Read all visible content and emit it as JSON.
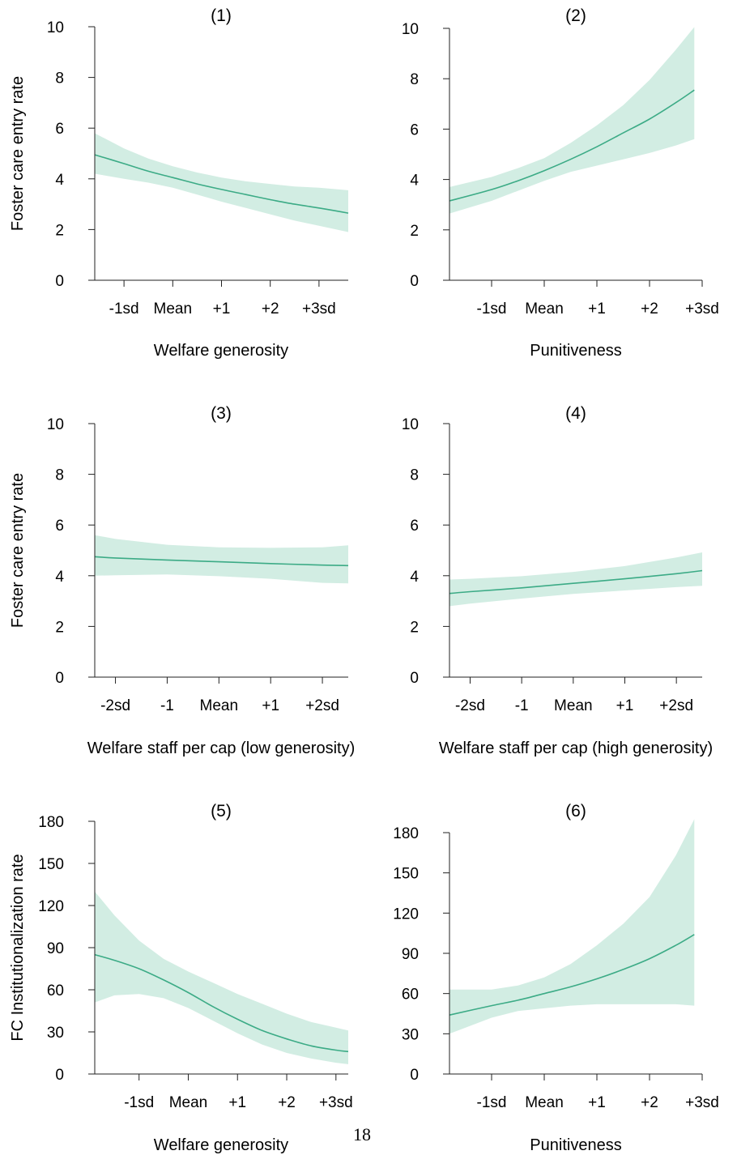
{
  "page_number": "18",
  "chart_data": [
    {
      "type": "line",
      "title": "(1)",
      "ylabel": "Foster care entry rate",
      "xlabel": "Welfare generosity",
      "ylim": [
        0,
        10
      ],
      "yticks": [
        0,
        2,
        4,
        6,
        8,
        10
      ],
      "xlim": [
        -1.6,
        3.6
      ],
      "xticks": [
        -1,
        0,
        1,
        2,
        3
      ],
      "xtick_labels": [
        "-1sd",
        "Mean",
        "+1",
        "+2",
        "+3sd"
      ],
      "x": [
        -1.6,
        -1.0,
        -0.5,
        0.0,
        0.5,
        1.0,
        1.5,
        2.0,
        2.5,
        3.0,
        3.6
      ],
      "y": [
        4.95,
        4.6,
        4.3,
        4.05,
        3.8,
        3.58,
        3.38,
        3.18,
        3.0,
        2.85,
        2.65
      ],
      "lower": [
        4.2,
        4.0,
        3.85,
        3.65,
        3.38,
        3.1,
        2.85,
        2.6,
        2.35,
        2.15,
        1.9
      ],
      "upper": [
        5.8,
        5.2,
        4.8,
        4.5,
        4.25,
        4.05,
        3.9,
        3.8,
        3.7,
        3.65,
        3.55
      ],
      "grid": false,
      "legend": "none"
    },
    {
      "type": "line",
      "title": "(2)",
      "ylabel": "",
      "xlabel": "Punitiveness",
      "ylim": [
        0,
        10
      ],
      "yticks": [
        0,
        2,
        4,
        6,
        8,
        10
      ],
      "xlim": [
        -1.8,
        3.0
      ],
      "xticks": [
        -1,
        0,
        1,
        2,
        3
      ],
      "xtick_labels": [
        "-1sd",
        "Mean",
        "+1",
        "+2",
        "+3sd"
      ],
      "x": [
        -1.8,
        -1.0,
        -0.5,
        0.0,
        0.5,
        1.0,
        1.5,
        2.0,
        2.5,
        2.85
      ],
      "y": [
        3.15,
        3.6,
        3.95,
        4.35,
        4.8,
        5.3,
        5.85,
        6.4,
        7.05,
        7.55
      ],
      "lower": [
        2.65,
        3.15,
        3.55,
        3.95,
        4.3,
        4.55,
        4.8,
        5.05,
        5.35,
        5.6
      ],
      "upper": [
        3.7,
        4.1,
        4.45,
        4.85,
        5.45,
        6.15,
        6.95,
        7.95,
        9.15,
        10.05
      ],
      "grid": false,
      "legend": "none"
    },
    {
      "type": "line",
      "title": "(3)",
      "ylabel": "Foster care entry rate",
      "xlabel": "Welfare staff per cap (low generosity)",
      "ylim": [
        0,
        10
      ],
      "yticks": [
        0,
        2,
        4,
        6,
        8,
        10
      ],
      "xlim": [
        -2.4,
        2.5
      ],
      "xticks": [
        -2,
        -1,
        0,
        1,
        2
      ],
      "xtick_labels": [
        "-2sd",
        "-1",
        "Mean",
        "+1",
        "+2sd"
      ],
      "x": [
        -2.4,
        -2.0,
        -1.0,
        0.0,
        1.0,
        2.0,
        2.5
      ],
      "y": [
        4.75,
        4.7,
        4.62,
        4.55,
        4.48,
        4.42,
        4.4
      ],
      "lower": [
        4.0,
        4.02,
        4.05,
        3.98,
        3.88,
        3.72,
        3.7
      ],
      "upper": [
        5.6,
        5.45,
        5.22,
        5.12,
        5.1,
        5.12,
        5.2
      ],
      "grid": false,
      "legend": "none"
    },
    {
      "type": "line",
      "title": "(4)",
      "ylabel": "",
      "xlabel": "Welfare staff per cap (high generosity)",
      "ylim": [
        0,
        10
      ],
      "yticks": [
        0,
        2,
        4,
        6,
        8,
        10
      ],
      "xlim": [
        -2.4,
        2.5
      ],
      "xticks": [
        -2,
        -1,
        0,
        1,
        2
      ],
      "xtick_labels": [
        "-2sd",
        "-1",
        "Mean",
        "+1",
        "+2sd"
      ],
      "x": [
        -2.4,
        -2.0,
        -1.0,
        0.0,
        1.0,
        2.0,
        2.5
      ],
      "y": [
        3.3,
        3.37,
        3.52,
        3.7,
        3.88,
        4.08,
        4.2
      ],
      "lower": [
        2.8,
        2.9,
        3.1,
        3.28,
        3.42,
        3.55,
        3.6
      ],
      "upper": [
        3.85,
        3.88,
        3.98,
        4.15,
        4.38,
        4.72,
        4.92
      ],
      "grid": false,
      "legend": "none"
    },
    {
      "type": "line",
      "title": "(5)",
      "ylabel": "FC Institutionalization rate",
      "xlabel": "Welfare generosity",
      "ylim": [
        0,
        180
      ],
      "yticks": [
        0,
        30,
        60,
        90,
        120,
        150,
        180
      ],
      "xlim": [
        -1.9,
        3.25
      ],
      "xticks": [
        -1,
        0,
        1,
        2,
        3
      ],
      "xtick_labels": [
        "-1sd",
        "Mean",
        "+1",
        "+2",
        "+3sd"
      ],
      "x": [
        -1.9,
        -1.5,
        -1.0,
        -0.5,
        0.0,
        0.5,
        1.0,
        1.5,
        2.0,
        2.5,
        3.0,
        3.25
      ],
      "y": [
        85,
        81,
        75,
        67,
        58,
        48,
        39,
        31,
        25,
        20,
        17,
        16
      ],
      "lower": [
        51,
        56,
        57,
        54,
        47,
        38,
        29,
        21,
        15,
        11,
        8,
        7
      ],
      "upper": [
        130,
        113,
        95,
        82,
        73,
        65,
        57,
        50,
        43,
        37,
        33,
        31
      ],
      "grid": false,
      "legend": "none"
    },
    {
      "type": "line",
      "title": "(6)",
      "ylabel": "",
      "xlabel": "Punitiveness",
      "ylim": [
        0,
        180
      ],
      "yticks": [
        0,
        30,
        60,
        90,
        120,
        150,
        180
      ],
      "xlim": [
        -1.8,
        3.0
      ],
      "xticks": [
        -1,
        0,
        1,
        2,
        3
      ],
      "xtick_labels": [
        "-1sd",
        "Mean",
        "+1",
        "+2",
        "+3sd"
      ],
      "x": [
        -1.8,
        -1.0,
        -0.5,
        0.0,
        0.5,
        1.0,
        1.5,
        2.0,
        2.5,
        2.85
      ],
      "y": [
        44,
        51,
        55,
        60,
        65,
        71,
        78,
        86,
        96,
        104
      ],
      "lower": [
        30,
        42,
        47,
        49,
        51,
        52,
        52,
        52,
        52,
        51
      ],
      "upper": [
        63,
        63,
        66,
        72,
        82,
        96,
        112,
        132,
        163,
        190
      ],
      "grid": false,
      "legend": "none"
    }
  ]
}
